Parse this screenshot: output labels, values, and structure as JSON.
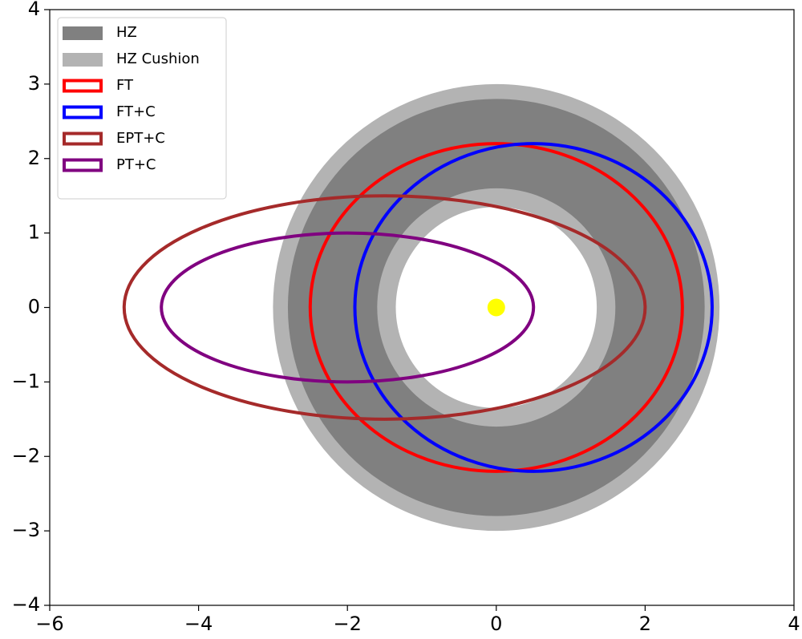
{
  "chart_data": {
    "type": "patches",
    "xlim": [
      -6,
      4
    ],
    "ylim": [
      -4,
      4
    ],
    "xticks": [
      {
        "value": -6,
        "label": "−6"
      },
      {
        "value": -4,
        "label": "−4"
      },
      {
        "value": -2,
        "label": "−2"
      },
      0,
      2,
      4
    ],
    "yticks": [
      {
        "value": -4,
        "label": "−4"
      },
      {
        "value": -3,
        "label": "−3"
      },
      {
        "value": -2,
        "label": "−2"
      },
      {
        "value": -1,
        "label": "−1"
      },
      0,
      1,
      2,
      3,
      4
    ],
    "legend": "upper left",
    "series": [
      {
        "name": "HZ",
        "color": "#808080",
        "kind": "annulus",
        "center": [
          0,
          0
        ],
        "radii": [
          1.6,
          2.8
        ]
      },
      {
        "name": "HZ Cushion",
        "color": "#b3b3b3",
        "kind": "annulus",
        "center": [
          0,
          0
        ],
        "radii": [
          1.35,
          3.0
        ]
      },
      {
        "name": "FT",
        "color": "#ff0000",
        "kind": "ellipse",
        "center": [
          0,
          0
        ],
        "semi_axes": [
          2.5,
          2.2
        ]
      },
      {
        "name": "FT+C",
        "color": "#0000ff",
        "kind": "ellipse",
        "center": [
          0.5,
          0
        ],
        "semi_axes": [
          2.4,
          2.2
        ]
      },
      {
        "name": "EPT+C",
        "color": "#a52a2a",
        "kind": "ellipse",
        "center": [
          -1.5,
          0
        ],
        "semi_axes": [
          3.5,
          1.5
        ]
      },
      {
        "name": "PT+C",
        "color": "#800080",
        "kind": "ellipse",
        "center": [
          -2,
          0
        ],
        "semi_axes": [
          2.5,
          1.0
        ]
      }
    ],
    "points": {
      "x": [
        0
      ],
      "y": [
        0
      ],
      "color": "#ffff00"
    }
  }
}
